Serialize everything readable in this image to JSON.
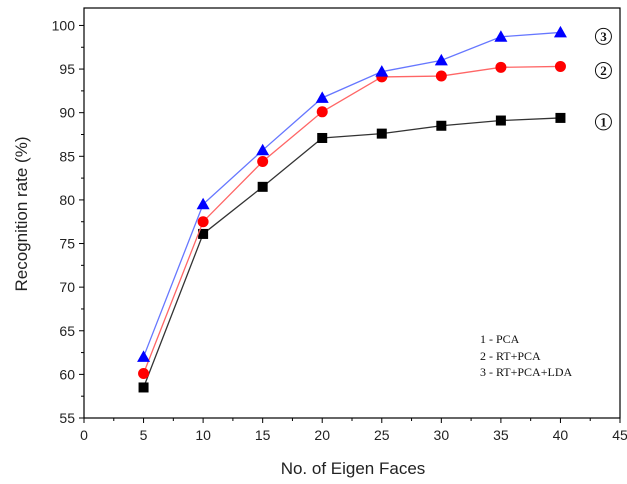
{
  "chart_data": {
    "type": "line",
    "title": "",
    "xlabel": "No. of Eigen Faces",
    "ylabel": "Recognition rate (%)",
    "xlim": [
      0,
      45
    ],
    "ylim": [
      55,
      102
    ],
    "xticks": [
      0,
      5,
      10,
      15,
      20,
      25,
      30,
      35,
      40,
      45
    ],
    "yticks": [
      55,
      60,
      65,
      70,
      75,
      80,
      85,
      90,
      95,
      100
    ],
    "grid": false,
    "x": [
      5,
      10,
      15,
      20,
      25,
      30,
      35,
      40
    ],
    "series": [
      {
        "label": "1",
        "color": "#000000",
        "line_color": "#333333",
        "marker": "square",
        "values": [
          58.5,
          76.1,
          81.5,
          87.1,
          87.6,
          88.5,
          89.1,
          89.4
        ]
      },
      {
        "label": "2",
        "color": "#ff0000",
        "line_color": "#ff6666",
        "marker": "circle",
        "values": [
          60.1,
          77.5,
          84.4,
          90.1,
          94.1,
          94.2,
          95.2,
          95.3
        ]
      },
      {
        "label": "3",
        "color": "#0000ff",
        "line_color": "#6677ff",
        "marker": "triangle",
        "values": [
          62.0,
          79.5,
          85.7,
          91.7,
          94.7,
          96.0,
          98.7,
          99.2
        ]
      }
    ],
    "legend": {
      "placement": "bottom-right",
      "entries": [
        "1 - PCA",
        "2 - RT+PCA",
        "3 - RT+PCA+LDA"
      ]
    }
  }
}
